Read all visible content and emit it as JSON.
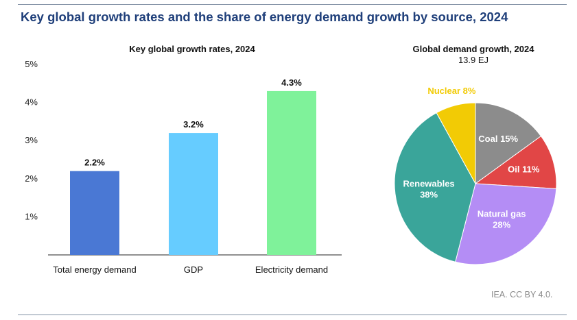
{
  "title": "Key global growth rates and the share of energy demand growth by source, 2024",
  "credit": "IEA. CC BY 4.0.",
  "colors": {
    "title": "#1f3f7a",
    "total_energy": "#4a78d4",
    "gdp": "#66ccff",
    "electricity": "#7ff29a",
    "coal": "#8c8c8c",
    "oil": "#e14646",
    "natural_gas": "#b48df5",
    "renewables": "#3aa59a",
    "nuclear": "#f2cb05"
  },
  "chart_data": [
    {
      "type": "bar",
      "title": "Key global growth rates, 2024",
      "categories": [
        "Total energy demand",
        "GDP",
        "Electricity demand"
      ],
      "values": [
        2.2,
        3.2,
        4.3
      ],
      "data_labels": [
        "2.2%",
        "3.2%",
        "4.3%"
      ],
      "ylim": [
        0,
        5
      ],
      "yticks": [
        1,
        2,
        3,
        4,
        5
      ],
      "ytick_labels": [
        "1%",
        "2%",
        "3%",
        "4%",
        "5%"
      ],
      "grid": false
    },
    {
      "type": "pie",
      "title": "Global demand growth, 2024",
      "subtitle": "13.9 EJ",
      "slices": [
        {
          "label": "Coal",
          "value": 15,
          "text": "Coal 15%"
        },
        {
          "label": "Oil",
          "value": 11,
          "text": "Oil 11%"
        },
        {
          "label": "Natural gas",
          "value": 28,
          "text": "Natural gas\n28%"
        },
        {
          "label": "Renewables",
          "value": 38,
          "text": "Renewables\n38%"
        },
        {
          "label": "Nuclear",
          "value": 8,
          "text": "Nuclear 8%"
        }
      ]
    }
  ]
}
